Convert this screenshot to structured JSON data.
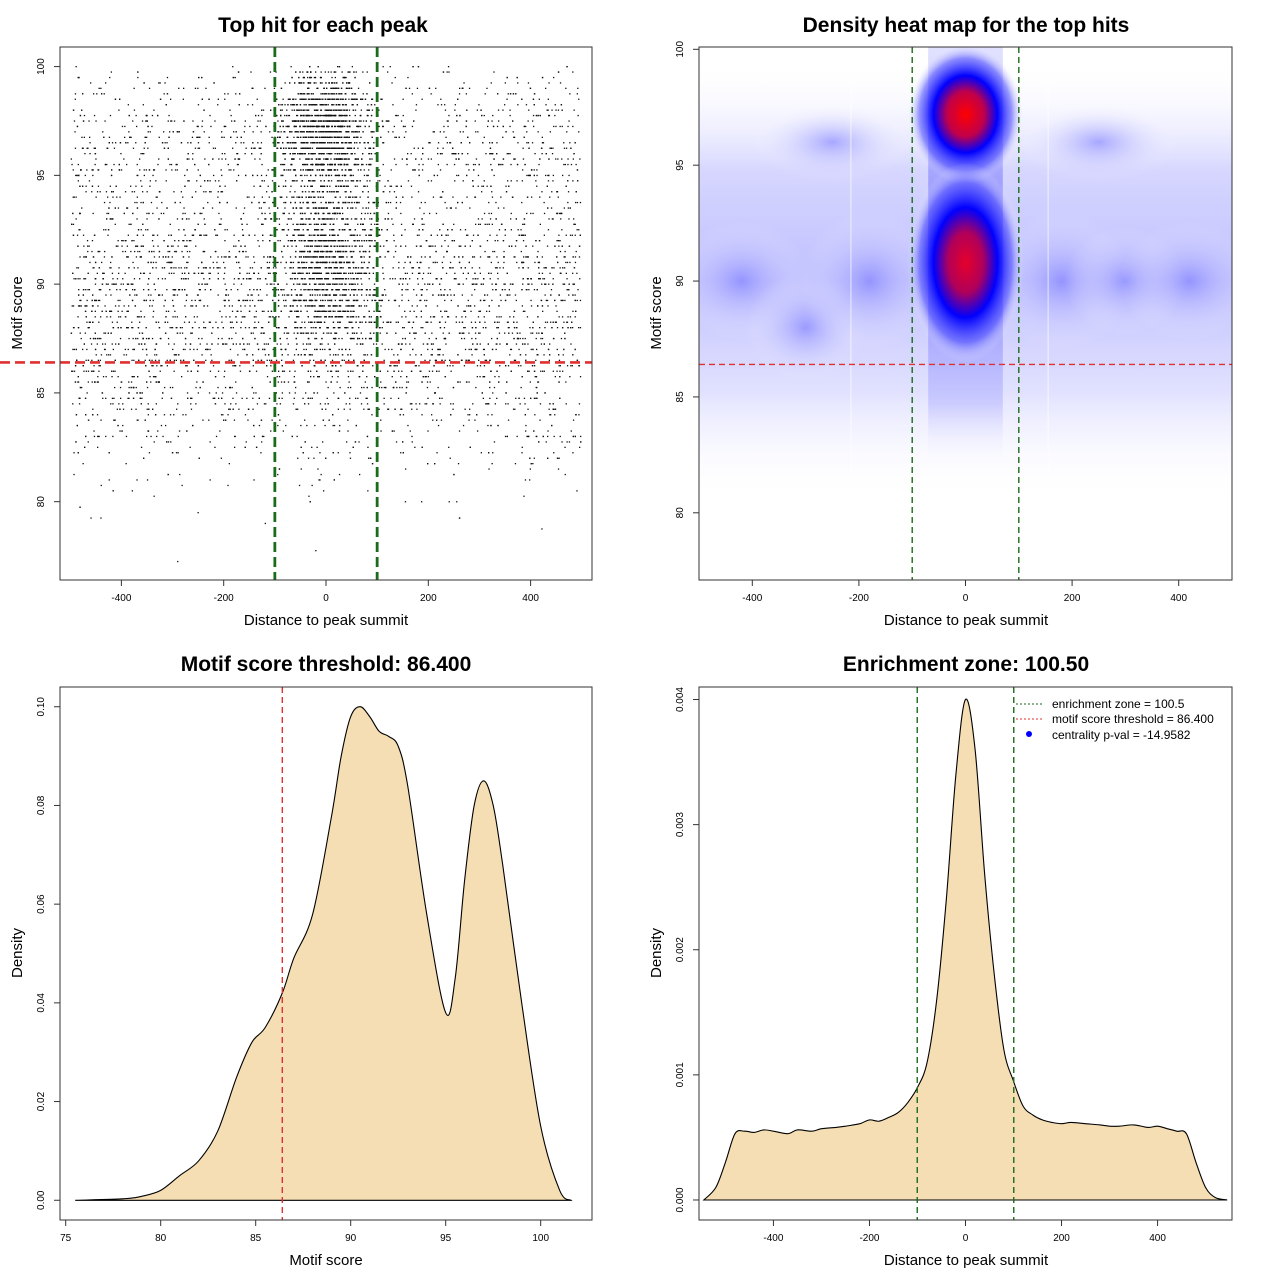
{
  "colors": {
    "threshold_line": "#e03030",
    "zone_line": "#1a6b1a",
    "density_fill": "#f5deb3",
    "heat_low": "#ffffff",
    "heat_mid": "#0000ff",
    "heat_high": "#ff0000"
  },
  "chart_data": [
    {
      "type": "scatter",
      "title": "Top hit for each peak",
      "xlabel": "Distance to peak summit",
      "ylabel": "Motif score",
      "xlim": [
        -520,
        520
      ],
      "ylim": [
        76.4,
        100.9
      ],
      "xticks": [
        -400,
        -200,
        0,
        200,
        400
      ],
      "yticks": [
        80,
        85,
        90,
        95,
        100
      ],
      "threshold": 86.4,
      "zone": [
        -100,
        100
      ],
      "grid": false
    },
    {
      "type": "heatmap",
      "title": "Density heat map for the top hits",
      "xlabel": "Distance to peak summit",
      "ylabel": "Motif score",
      "xlim": [
        -500,
        500
      ],
      "ylim": [
        77.1,
        100.1
      ],
      "xticks": [
        -400,
        -200,
        0,
        200,
        400
      ],
      "yticks": [
        80,
        85,
        90,
        95,
        100
      ],
      "threshold": 86.4,
      "zone": [
        -100,
        100
      ],
      "hotspots": [
        {
          "x": 0,
          "y": 97.2,
          "intensity": 1.0
        },
        {
          "x": 0,
          "y": 90.8,
          "intensity": 0.85
        }
      ]
    },
    {
      "type": "area",
      "title": "Motif score threshold: 86.400",
      "xlabel": "Motif score",
      "ylabel": "Density",
      "xlim": [
        74.7,
        102.7
      ],
      "ylim": [
        -0.004,
        0.104
      ],
      "xticks": [
        75,
        80,
        85,
        90,
        95,
        100
      ],
      "yticks": [
        0.0,
        0.02,
        0.04,
        0.06,
        0.08,
        0.1
      ],
      "ytick_labels": [
        "0.00",
        "0.02",
        "0.04",
        "0.06",
        "0.08",
        "0.10"
      ],
      "threshold": 86.4,
      "x": [
        75.5,
        78,
        79,
        80,
        81,
        82,
        83,
        84,
        84.8,
        85.5,
        86.4,
        87,
        88,
        89,
        89.5,
        90,
        90.5,
        91,
        91.5,
        92,
        92.5,
        93,
        94,
        95,
        95.5,
        96,
        96.5,
        97,
        97.5,
        98,
        99,
        100,
        101,
        101.6
      ],
      "values": [
        0,
        0.0003,
        0.0008,
        0.002,
        0.005,
        0.008,
        0.014,
        0.025,
        0.032,
        0.035,
        0.042,
        0.049,
        0.058,
        0.078,
        0.09,
        0.098,
        0.1,
        0.098,
        0.095,
        0.094,
        0.092,
        0.084,
        0.058,
        0.038,
        0.045,
        0.065,
        0.08,
        0.085,
        0.08,
        0.068,
        0.04,
        0.015,
        0.002,
        0
      ]
    },
    {
      "type": "area",
      "title": "Enrichment zone: 100.50",
      "xlabel": "Distance to peak summit",
      "ylabel": "Density",
      "xlim": [
        -555,
        555
      ],
      "ylim": [
        -0.00016,
        0.0041
      ],
      "xticks": [
        -400,
        -200,
        0,
        200,
        400
      ],
      "yticks": [
        0.0,
        0.001,
        0.002,
        0.003,
        0.004
      ],
      "ytick_labels": [
        "0.000",
        "0.001",
        "0.002",
        "0.003",
        "0.004"
      ],
      "zone": [
        -100.5,
        100.5
      ],
      "x": [
        -545,
        -520,
        -500,
        -480,
        -460,
        -440,
        -420,
        -400,
        -370,
        -350,
        -320,
        -300,
        -270,
        -250,
        -220,
        -200,
        -180,
        -160,
        -140,
        -120,
        -100,
        -80,
        -60,
        -40,
        -20,
        0,
        20,
        40,
        60,
        80,
        100,
        120,
        140,
        160,
        180,
        200,
        220,
        250,
        280,
        300,
        320,
        350,
        380,
        400,
        420,
        440,
        460,
        480,
        500,
        520,
        545
      ],
      "values": [
        0,
        0.0001,
        0.0003,
        0.00053,
        0.00055,
        0.00054,
        0.00056,
        0.00055,
        0.00053,
        0.00056,
        0.00055,
        0.00057,
        0.00058,
        0.00059,
        0.00061,
        0.00064,
        0.00063,
        0.00066,
        0.0007,
        0.00078,
        0.0009,
        0.0011,
        0.0016,
        0.0024,
        0.0034,
        0.004,
        0.0036,
        0.0026,
        0.0018,
        0.0012,
        0.00095,
        0.00075,
        0.00068,
        0.00064,
        0.00062,
        0.00061,
        0.00062,
        0.00061,
        0.0006,
        0.00059,
        0.00059,
        0.0006,
        0.00058,
        0.00059,
        0.00057,
        0.00055,
        0.00053,
        0.0003,
        0.0001,
        2e-05,
        0
      ],
      "legend": {
        "placement": "top-right",
        "entries": [
          "enrichment zone = 100.5",
          "motif score threshold = 86.400",
          "centrality p-val = -14.9582"
        ]
      }
    }
  ]
}
